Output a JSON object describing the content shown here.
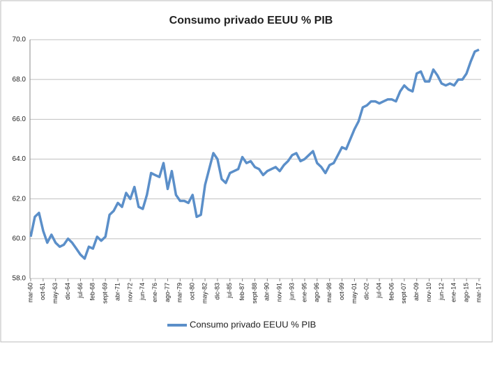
{
  "chart_data": {
    "type": "line",
    "title": "Consumo privado EEUU % PIB",
    "categories": [
      "mar-60",
      null,
      null,
      "oct-61",
      null,
      null,
      "may-63",
      null,
      null,
      "dic-64",
      null,
      null,
      "jul-66",
      null,
      null,
      "feb-68",
      null,
      null,
      "sept-69",
      null,
      null,
      "abr-71",
      null,
      null,
      "nov-72",
      null,
      null,
      "jun-74",
      null,
      null,
      "ene-76",
      null,
      null,
      "ago-77",
      null,
      null,
      "mar-79",
      null,
      null,
      "oct-80",
      null,
      null,
      "may-82",
      null,
      null,
      "dic-83",
      null,
      null,
      "jul-85",
      null,
      null,
      "feb-87",
      null,
      null,
      "sept-88",
      null,
      null,
      "abr-90",
      null,
      null,
      "nov-91",
      null,
      null,
      "jun-93",
      null,
      null,
      "ene-95",
      null,
      null,
      "ago-96",
      null,
      null,
      "mar-98",
      null,
      null,
      "oct-99",
      null,
      null,
      "may-01",
      null,
      null,
      "dic-02",
      null,
      null,
      "jul-04",
      null,
      null,
      "feb-06",
      null,
      null,
      "sept-07",
      null,
      null,
      "abr-09",
      null,
      null,
      "nov-10",
      null,
      null,
      "jun-12",
      null,
      null,
      "ene-14",
      null,
      null,
      "ago-15",
      null,
      null,
      "mar-17"
    ],
    "series": [
      {
        "name": "Consumo privado EEUU % PIB",
        "color": "#5b8fc9",
        "values": [
          60.1,
          61.1,
          61.3,
          60.4,
          59.8,
          60.2,
          59.8,
          59.6,
          59.7,
          60.0,
          59.8,
          59.5,
          59.2,
          59.0,
          59.6,
          59.5,
          60.1,
          59.9,
          60.1,
          61.2,
          61.4,
          61.8,
          61.6,
          62.3,
          62.0,
          62.6,
          61.6,
          61.5,
          62.2,
          63.3,
          63.2,
          63.1,
          63.8,
          62.5,
          63.4,
          62.2,
          61.9,
          61.9,
          61.8,
          62.2,
          61.1,
          61.2,
          62.7,
          63.5,
          64.3,
          64.0,
          63.0,
          62.8,
          63.3,
          63.4,
          63.5,
          64.1,
          63.8,
          63.9,
          63.6,
          63.5,
          63.2,
          63.4,
          63.5,
          63.6,
          63.4,
          63.7,
          63.9,
          64.2,
          64.3,
          63.9,
          64.0,
          64.2,
          64.4,
          63.8,
          63.6,
          63.3,
          63.7,
          63.8,
          64.2,
          64.6,
          64.5,
          65.0,
          65.5,
          65.9,
          66.6,
          66.7,
          66.9,
          66.9,
          66.8,
          66.9,
          67.0,
          67.0,
          66.9,
          67.4,
          67.7,
          67.5,
          67.4,
          68.3,
          68.4,
          67.9,
          67.9,
          68.5,
          68.2,
          67.8,
          67.7,
          67.8,
          67.7,
          68.0,
          68.0,
          68.3,
          68.9,
          69.4,
          69.5
        ]
      }
    ],
    "ylim": [
      58,
      70
    ],
    "yticks": [
      {
        "value": 58,
        "label": "58.0"
      },
      {
        "value": 60,
        "label": "60.0"
      },
      {
        "value": 62,
        "label": "62.0"
      },
      {
        "value": 64,
        "label": "64.0"
      },
      {
        "value": 66,
        "label": "66.0"
      },
      {
        "value": 68,
        "label": "68.0"
      },
      {
        "value": 70,
        "label": "70.0"
      }
    ],
    "grid": true,
    "legend": "bottom"
  }
}
